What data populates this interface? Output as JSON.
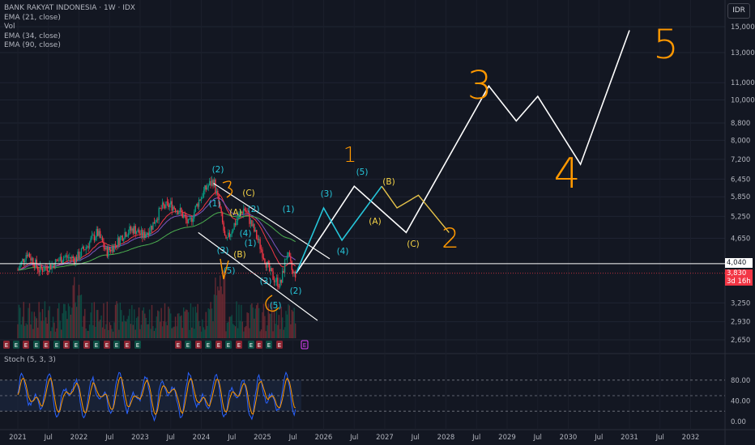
{
  "header": {
    "symbol": "BANK RAKYAT INDONESIA · 1W · IDX",
    "indicators": [
      "EMA (21, close)",
      "Vol",
      "EMA (34, close)",
      "EMA (90, close)"
    ],
    "currency": "IDR"
  },
  "stoch_label": "Stoch (5, 3, 3)",
  "price_tags": {
    "horizontal_level": "4,040",
    "last_price": "3,830",
    "countdown": "3d 16h"
  },
  "colors": {
    "background": "#131722",
    "white_path": "#ffffff",
    "cyan": "#26c6da",
    "yellow": "#f7d547",
    "orange": "#ff9800",
    "red": "#f23645",
    "stoch_k": "#2962ff",
    "stoch_d": "#ff9800"
  },
  "chart_data": {
    "type": "candlestick",
    "x_ticks": [
      "2021",
      "Jul",
      "2022",
      "Jul",
      "2023",
      "Jul",
      "2024",
      "Jul",
      "2025",
      "Jul",
      "2026",
      "Jul",
      "2027",
      "Jul",
      "2028",
      "Jul",
      "2029",
      "Jul",
      "2030",
      "Jul",
      "2031",
      "Jul",
      "2032"
    ],
    "price_axis": {
      "scale": "log",
      "ticks": [
        "15,000",
        "13,000",
        "11,000",
        "10,000",
        "8,800",
        "8,000",
        "7,200",
        "6,450",
        "5,850",
        "5,250",
        "4,650",
        "3,250",
        "2,930",
        "2,650"
      ]
    },
    "stoch_axis": {
      "ticks": [
        "80.00",
        "40.00",
        "0.00"
      ],
      "range": [
        0,
        100
      ],
      "bands": [
        20,
        80
      ]
    },
    "horizontal_level": 4040,
    "last_price": 3830,
    "price_series": [
      {
        "t": 2021.0,
        "p": 3900
      },
      {
        "t": 2021.15,
        "p": 4300
      },
      {
        "t": 2021.35,
        "p": 3900
      },
      {
        "t": 2021.55,
        "p": 4000
      },
      {
        "t": 2021.75,
        "p": 4200
      },
      {
        "t": 2021.95,
        "p": 4150
      },
      {
        "t": 2022.15,
        "p": 4500
      },
      {
        "t": 2022.3,
        "p": 4800
      },
      {
        "t": 2022.45,
        "p": 4300
      },
      {
        "t": 2022.6,
        "p": 4500
      },
      {
        "t": 2022.75,
        "p": 4800
      },
      {
        "t": 2022.9,
        "p": 4900
      },
      {
        "t": 2023.05,
        "p": 4700
      },
      {
        "t": 2023.2,
        "p": 5000
      },
      {
        "t": 2023.35,
        "p": 5500
      },
      {
        "t": 2023.5,
        "p": 5600
      },
      {
        "t": 2023.65,
        "p": 5400
      },
      {
        "t": 2023.8,
        "p": 5000
      },
      {
        "t": 2023.95,
        "p": 5700
      },
      {
        "t": 2024.1,
        "p": 6200
      },
      {
        "t": 2024.2,
        "p": 6400
      },
      {
        "t": 2024.3,
        "p": 5500
      },
      {
        "t": 2024.4,
        "p": 4500
      },
      {
        "t": 2024.5,
        "p": 4900
      },
      {
        "t": 2024.6,
        "p": 5200
      },
      {
        "t": 2024.7,
        "p": 5500
      },
      {
        "t": 2024.8,
        "p": 5100
      },
      {
        "t": 2024.9,
        "p": 4700
      },
      {
        "t": 2025.0,
        "p": 4300
      },
      {
        "t": 2025.1,
        "p": 3900
      },
      {
        "t": 2025.2,
        "p": 3700
      },
      {
        "t": 2025.3,
        "p": 3600
      },
      {
        "t": 2025.4,
        "p": 4300
      },
      {
        "t": 2025.5,
        "p": 3800
      },
      {
        "t": 2025.55,
        "p": 3830
      }
    ],
    "projection_white": [
      {
        "t": 2025.55,
        "p": 3830
      },
      {
        "t": 2026.0,
        "p": 4800
      },
      {
        "t": 2026.5,
        "p": 6200
      },
      {
        "t": 2027.35,
        "p": 4800
      },
      {
        "t": 2028.7,
        "p": 10800
      },
      {
        "t": 2029.15,
        "p": 8900
      },
      {
        "t": 2029.5,
        "p": 10200
      },
      {
        "t": 2030.2,
        "p": 7000
      },
      {
        "t": 2031.0,
        "p": 14700
      }
    ],
    "projection_cyan": [
      {
        "t": 2025.55,
        "p": 3830
      },
      {
        "t": 2026.0,
        "p": 5500
      },
      {
        "t": 2026.3,
        "p": 4600
      },
      {
        "t": 2026.95,
        "p": 6200
      }
    ],
    "projection_yellow": [
      {
        "t": 2026.95,
        "p": 6200
      },
      {
        "t": 2027.2,
        "p": 5500
      },
      {
        "t": 2027.55,
        "p": 5900
      },
      {
        "t": 2028.05,
        "p": 4800
      }
    ],
    "annotations_cyan": [
      "(2)",
      "(1)",
      "(2)",
      "(1)",
      "(4)",
      "(3)",
      "(3)",
      "(5)",
      "(1)",
      "(2)",
      "(3)",
      "(5)",
      "(4)",
      "(5)"
    ],
    "annotations_yellow": [
      "(A)",
      "(C)",
      "(B)",
      "(B)",
      "(A)",
      "(C)"
    ],
    "orange_wave_labels": [
      "1",
      "2",
      "3",
      "4",
      "5"
    ]
  }
}
